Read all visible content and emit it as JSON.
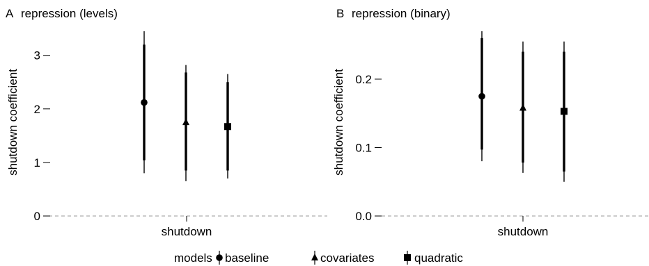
{
  "chart_data": [
    {
      "type": "point-range",
      "panel_letter": "A",
      "title": "repression (levels)",
      "xlabel": "",
      "ylabel": "shutdown coefficient",
      "categories": [
        "shutdown"
      ],
      "ylim": [
        0,
        3.45
      ],
      "yticks": [
        0,
        1,
        2,
        3
      ],
      "ytick_labels": [
        "0",
        "1",
        "2",
        "3"
      ],
      "reference_line": 0,
      "series": [
        {
          "name": "baseline",
          "estimate": 2.12,
          "ci_inner": [
            1.04,
            3.2
          ],
          "ci_outer": [
            0.8,
            3.45
          ]
        },
        {
          "name": "covariates",
          "estimate": 1.75,
          "ci_inner": [
            0.85,
            2.68
          ],
          "ci_outer": [
            0.65,
            2.82
          ]
        },
        {
          "name": "quadratic",
          "estimate": 1.67,
          "ci_inner": [
            0.85,
            2.5
          ],
          "ci_outer": [
            0.7,
            2.65
          ]
        }
      ]
    },
    {
      "type": "point-range",
      "panel_letter": "B",
      "title": "repression (binary)",
      "xlabel": "",
      "ylabel": "shutdown coefficient",
      "categories": [
        "shutdown"
      ],
      "ylim": [
        0,
        0.27
      ],
      "yticks": [
        0,
        0.1,
        0.2
      ],
      "ytick_labels": [
        "0.0",
        "0.1",
        "0.2"
      ],
      "reference_line": 0,
      "series": [
        {
          "name": "baseline",
          "estimate": 0.175,
          "ci_inner": [
            0.097,
            0.26
          ],
          "ci_outer": [
            0.08,
            0.27
          ]
        },
        {
          "name": "covariates",
          "estimate": 0.158,
          "ci_inner": [
            0.078,
            0.24
          ],
          "ci_outer": [
            0.063,
            0.255
          ]
        },
        {
          "name": "quadratic",
          "estimate": 0.153,
          "ci_inner": [
            0.065,
            0.24
          ],
          "ci_outer": [
            0.05,
            0.255
          ]
        }
      ]
    }
  ],
  "legend": {
    "title": "models",
    "placement": "bottom",
    "entries": [
      {
        "label": "baseline",
        "marker": "circle-icon"
      },
      {
        "label": "covariates",
        "marker": "triangle-icon"
      },
      {
        "label": "quadratic",
        "marker": "square-icon"
      }
    ]
  },
  "colors": {
    "ink": "#000000",
    "reference_line": "#9a9a9a"
  }
}
